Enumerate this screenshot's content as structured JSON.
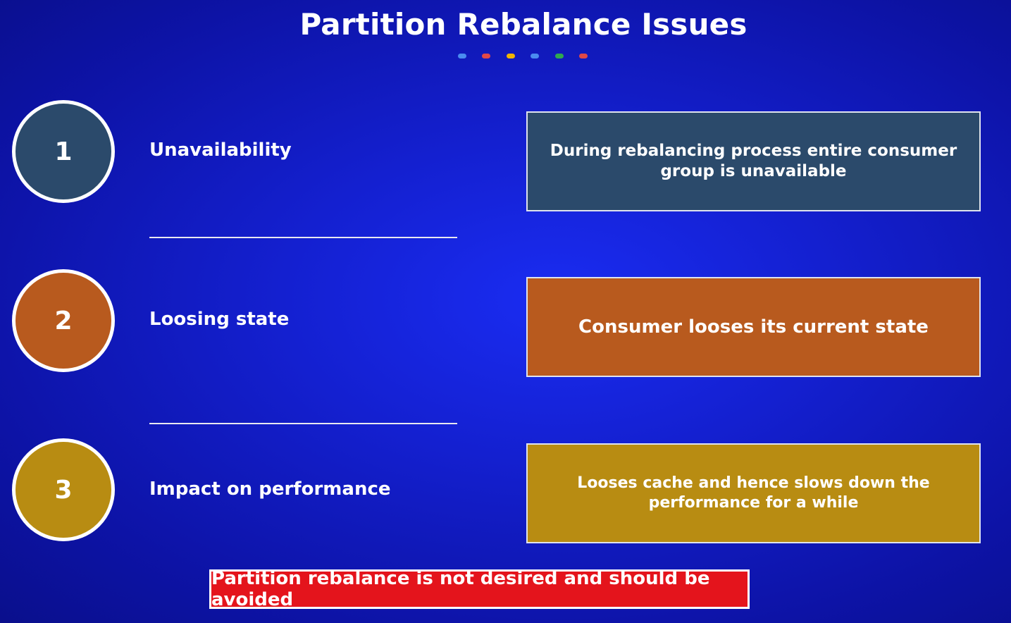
{
  "slide": {
    "title": "Partition Rebalance Issues",
    "dots": [
      {
        "icon": "blue-dot",
        "color": "#4a8cf0"
      },
      {
        "icon": "red-dot",
        "color": "#e04848"
      },
      {
        "icon": "yellow-dot",
        "color": "#f0b400"
      },
      {
        "icon": "blue-dot",
        "color": "#4a8cf0"
      },
      {
        "icon": "green-dot",
        "color": "#2fa84f"
      },
      {
        "icon": "red-dot",
        "color": "#e04848"
      }
    ]
  },
  "issues": [
    {
      "number": "1",
      "label": "Unavailability",
      "description": "During rebalancing process entire consumer group is unavailable",
      "color": "#2b4a6b"
    },
    {
      "number": "2",
      "label": "Loosing state",
      "description": "Consumer looses its current state",
      "color": "#b85a1e"
    },
    {
      "number": "3",
      "label": "Impact on performance",
      "description": "Looses cache and hence slows down the performance for a while",
      "color": "#b88c12"
    }
  ],
  "footer": {
    "text": "Partition rebalance is not desired and should be avoided",
    "color": "#e4141c"
  }
}
